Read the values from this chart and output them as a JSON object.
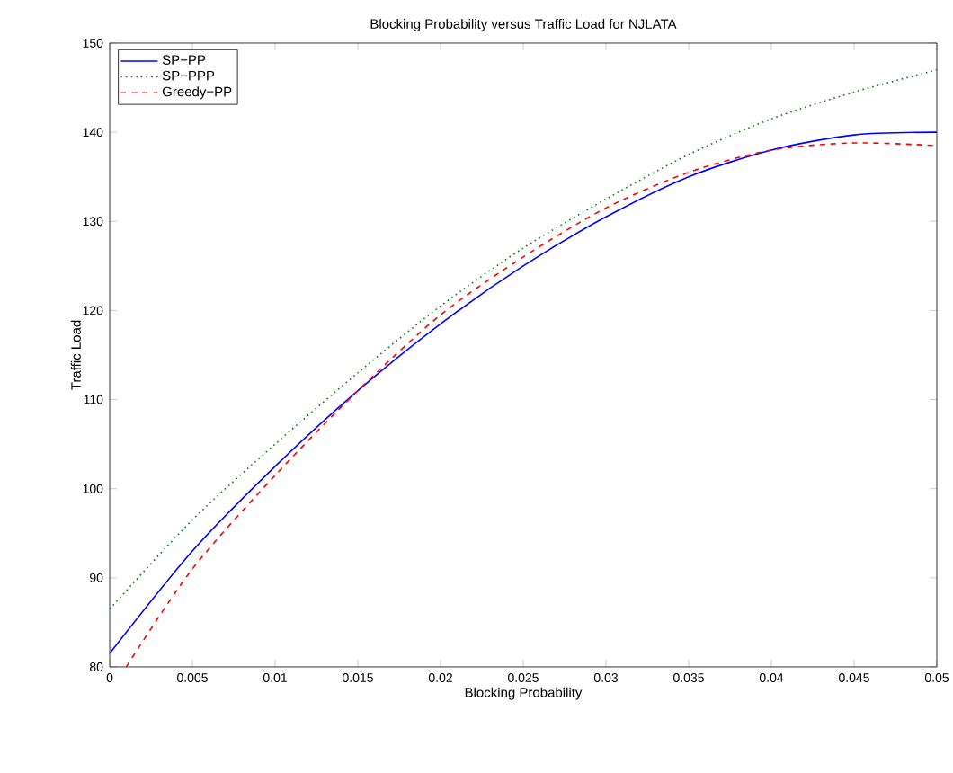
{
  "chart_data": {
    "type": "line",
    "title": "Blocking Probability versus Traffic Load for NJLATA",
    "xlabel": "Blocking Probability",
    "ylabel": "Traffic Load",
    "x": [
      0,
      0.005,
      0.01,
      0.015,
      0.02,
      0.025,
      0.03,
      0.035,
      0.04,
      0.045,
      0.05
    ],
    "series": [
      {
        "name": "SP−PP",
        "color": "#0000ff",
        "line_style": "solid",
        "values": [
          81.5,
          93,
          102.5,
          111,
          118.5,
          125,
          130.5,
          135,
          138,
          139.7,
          140
        ]
      },
      {
        "name": "SP−PPP",
        "color": "#008000",
        "line_style": "dotted",
        "values": [
          86.5,
          96.5,
          105,
          113,
          120.5,
          127,
          132.5,
          137.5,
          141.5,
          144.5,
          147
        ]
      },
      {
        "name": "Greedy−PP",
        "color": "#ff0000",
        "line_style": "dashed",
        "x": [
          0.001,
          0.005,
          0.01,
          0.015,
          0.02,
          0.025,
          0.03,
          0.035,
          0.04,
          0.045,
          0.05
        ],
        "values": [
          80,
          91,
          101.5,
          111,
          119.5,
          126,
          131.5,
          135.5,
          138,
          138.8,
          138.5
        ]
      }
    ],
    "xlim": [
      0,
      0.05
    ],
    "ylim": [
      80,
      150
    ],
    "xticks": [
      0,
      0.005,
      0.01,
      0.015,
      0.02,
      0.025,
      0.03,
      0.035,
      0.04,
      0.045,
      0.05
    ],
    "yticks": [
      80,
      90,
      100,
      110,
      120,
      130,
      140,
      150
    ],
    "legend": "top left",
    "grid": false,
    "marker": "none"
  }
}
